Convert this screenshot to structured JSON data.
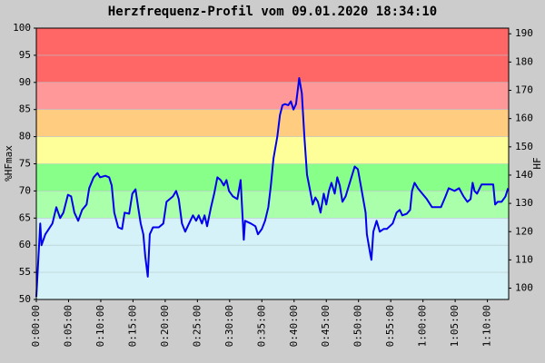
{
  "chart_data": {
    "type": "line",
    "title": "Herzfrequenz-Profil vom 09.01.2020 18:34:10",
    "y_label": "%HFmax",
    "y2_label": "HF",
    "color": "#0000ee",
    "x": [
      0,
      0.6,
      0.8,
      1.4,
      2.5,
      3.1,
      3.7,
      4.2,
      4.9,
      5.4,
      5.9,
      6.5,
      7.1,
      7.8,
      8.2,
      8.9,
      9.5,
      9.9,
      10.7,
      11.3,
      11.7,
      12.1,
      12.7,
      13.3,
      13.7,
      14.4,
      14.9,
      15.4,
      15.8,
      16.2,
      16.6,
      16.9,
      17.3,
      17.6,
      18.1,
      19.0,
      19.7,
      20.2,
      21.2,
      21.7,
      22.1,
      22.6,
      23.1,
      23.7,
      24.3,
      24.8,
      25.2,
      25.7,
      26.1,
      26.5,
      27.1,
      27.6,
      28.1,
      28.6,
      29.1,
      29.5,
      29.9,
      30.5,
      31.2,
      31.7,
      32.2,
      32.4,
      33.3,
      34.0,
      34.4,
      35.0,
      35.5,
      36.0,
      36.4,
      36.8,
      37.4,
      37.8,
      38.2,
      38.6,
      39.1,
      39.5,
      39.9,
      40.3,
      40.8,
      41.2,
      41.6,
      42.0,
      42.5,
      42.9,
      43.3,
      43.7,
      44.1,
      44.6,
      45.0,
      45.4,
      45.8,
      46.3,
      46.7,
      47.1,
      47.5,
      48.0,
      49.4,
      49.9,
      50.5,
      51.1,
      51.3,
      51.8,
      52.0,
      52.3,
      52.8,
      53.3,
      53.9,
      54.4,
      55.3,
      55.9,
      56.4,
      56.8,
      57.5,
      58.0,
      58.3,
      58.7,
      59.2,
      59.9,
      60.6,
      61.4,
      62.8,
      63.5,
      64.0,
      64.9,
      65.6,
      66.3,
      66.9,
      67.4,
      67.7,
      68.0,
      68.4,
      69.1,
      70.9,
      71.2,
      71.6,
      72.2,
      72.8,
      73.2
    ],
    "values": [
      50.5,
      64,
      60,
      62,
      64,
      67,
      65,
      66,
      69.3,
      69,
      66,
      64.5,
      66.5,
      67.5,
      70.5,
      72.5,
      73.3,
      72.5,
      72.8,
      72.5,
      71,
      66,
      63.3,
      63,
      66,
      65.8,
      69.5,
      70.3,
      67,
      64,
      62,
      58,
      54.2,
      62,
      63.3,
      63.3,
      64,
      68,
      69,
      70,
      68.5,
      64,
      62.5,
      64,
      65.5,
      64.5,
      65.5,
      64,
      65.5,
      63.5,
      67,
      69.5,
      72.5,
      72,
      71,
      72,
      70,
      69,
      68.5,
      72,
      61,
      64.5,
      64,
      63.5,
      62,
      63,
      64.5,
      67,
      71,
      76,
      80,
      84,
      85.8,
      86,
      85.8,
      86.5,
      85,
      86,
      90.8,
      88,
      80,
      73,
      70,
      67.5,
      68.8,
      68,
      66,
      69.5,
      67.5,
      70,
      71.5,
      69.5,
      72.5,
      71,
      68,
      69,
      74.5,
      74,
      70,
      66,
      62,
      58.5,
      57.3,
      62.5,
      64.5,
      62.5,
      63,
      63,
      64,
      66,
      66.5,
      65.5,
      65.8,
      66.5,
      70,
      71.5,
      70.5,
      69.5,
      68.5,
      67,
      67,
      69,
      70.5,
      70,
      70.5,
      69,
      68,
      68.5,
      71.5,
      70,
      69.5,
      71.2,
      71.2,
      67.5,
      68,
      68,
      69,
      70.5
    ],
    "xlim": [
      0,
      73.3
    ],
    "xticks": [
      {
        "value": 0,
        "label": "0:00:00"
      },
      {
        "value": 5,
        "label": "0:05:00"
      },
      {
        "value": 10,
        "label": "0:10:00"
      },
      {
        "value": 15,
        "label": "0:15:00"
      },
      {
        "value": 20,
        "label": "0:20:00"
      },
      {
        "value": 25,
        "label": "0:25:00"
      },
      {
        "value": 30,
        "label": "0:30:00"
      },
      {
        "value": 35,
        "label": "0:35:00"
      },
      {
        "value": 40,
        "label": "0:40:00"
      },
      {
        "value": 45,
        "label": "0:45:00"
      },
      {
        "value": 50,
        "label": "0:50:00"
      },
      {
        "value": 55,
        "label": "0:55:00"
      },
      {
        "value": 60,
        "label": "1:00:00"
      },
      {
        "value": 65,
        "label": "1:05:00"
      },
      {
        "value": 70,
        "label": "1:10:00"
      }
    ],
    "ylim": [
      50,
      100
    ],
    "yticks": [
      50,
      55,
      60,
      65,
      70,
      75,
      80,
      85,
      90,
      95,
      100
    ],
    "y2lim": [
      96,
      192
    ],
    "y2ticks": [
      100,
      110,
      120,
      130,
      140,
      150,
      160,
      170,
      180,
      190
    ],
    "grid": true,
    "zones": [
      {
        "from": 50,
        "to": 65,
        "color": "#d4f2f8"
      },
      {
        "from": 65,
        "to": 70,
        "color": "#aaffaa"
      },
      {
        "from": 70,
        "to": 75,
        "color": "#88ff88"
      },
      {
        "from": 75,
        "to": 80,
        "color": "#ffff99"
      },
      {
        "from": 80,
        "to": 85,
        "color": "#ffcc80"
      },
      {
        "from": 85,
        "to": 90,
        "color": "#ff9999"
      },
      {
        "from": 90,
        "to": 100,
        "color": "#ff6666"
      }
    ]
  }
}
